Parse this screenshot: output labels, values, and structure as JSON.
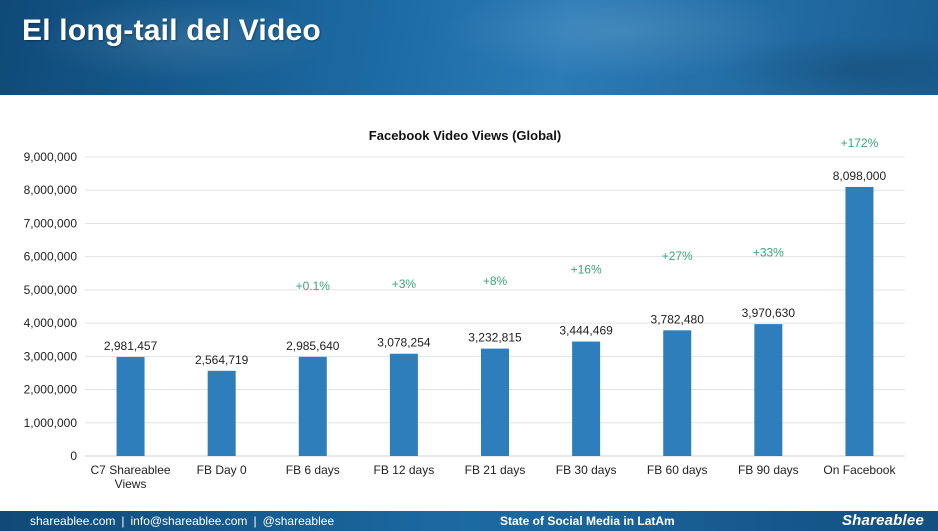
{
  "header": {
    "title": "El long-tail del Video"
  },
  "chart_data": {
    "type": "bar",
    "title": "Facebook Video Views (Global)",
    "categories": [
      [
        "C7 Shareablee",
        "Views"
      ],
      [
        "FB Day 0"
      ],
      [
        "FB 6 days"
      ],
      [
        "FB 12 days"
      ],
      [
        "FB 21 days"
      ],
      [
        "FB 30 days"
      ],
      [
        "FB 60 days"
      ],
      [
        "FB 90 days"
      ],
      [
        "On Facebook"
      ]
    ],
    "values": [
      2981457,
      2564719,
      2985640,
      3078254,
      3232815,
      3444469,
      3782480,
      3970630,
      8098000
    ],
    "value_labels": [
      "2,981,457",
      "2,564,719",
      "2,985,640",
      "3,078,254",
      "3,232,815",
      "3,444,469",
      "3,782,480",
      "3,970,630",
      "8,098,000"
    ],
    "growth_labels": [
      {
        "index": 2,
        "text": "+0.1%",
        "y": 5000000
      },
      {
        "index": 3,
        "text": "+3%",
        "y": 5050000
      },
      {
        "index": 4,
        "text": "+8%",
        "y": 5150000
      },
      {
        "index": 5,
        "text": "+16%",
        "y": 5500000
      },
      {
        "index": 6,
        "text": "+27%",
        "y": 5900000
      },
      {
        "index": 7,
        "text": "+33%",
        "y": 6000000
      },
      {
        "index": 8,
        "text": "+172%",
        "y": 9300000
      }
    ],
    "ylim": [
      0,
      9000000
    ],
    "yticks": [
      0,
      1000000,
      2000000,
      3000000,
      4000000,
      5000000,
      6000000,
      7000000,
      8000000,
      9000000
    ],
    "ytick_labels": [
      "0",
      "1,000,000",
      "2,000,000",
      "3,000,000",
      "4,000,000",
      "5,000,000",
      "6,000,000",
      "7,000,000",
      "8,000,000",
      "9,000,000"
    ],
    "grid": true,
    "legend": "none",
    "colors": {
      "bar": "#2e7ebb",
      "growth": "#3aa67a",
      "grid": "#e3e3e3",
      "text": "#222222"
    }
  },
  "footer": {
    "website": "shareablee.com",
    "email": "info@shareablee.com",
    "handle": "@shareablee",
    "separator": "|",
    "center_text": "State of Social Media in LatAm",
    "logo_text": "Shareablee"
  }
}
